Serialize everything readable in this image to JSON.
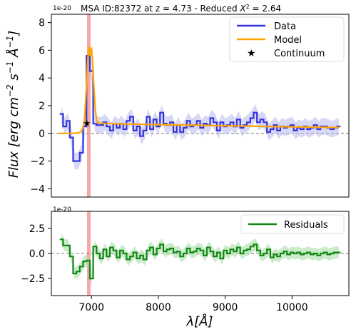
{
  "title": "MSA ID:82372 at z = 4.73 - Reduced",
  "title_chi": "X",
  "title_chi_exp": "2",
  "title_chi_value": " = 2.64",
  "colors": {
    "data": "#3333dd",
    "data_err": "#b8b8ee",
    "model": "#ffa500",
    "residuals": "#118811",
    "residuals_err": "#a8dda8",
    "line_marker": "#f4a0a0",
    "zero": "#777777"
  },
  "chart_data": [
    {
      "type": "line",
      "panel": "top",
      "offset_text": "1e-20",
      "ylabel": "Flux [erg cm",
      "ylabel_exp1": "−2",
      "ylabel_mid": " s",
      "ylabel_exp2": "−1",
      "ylabel_mid2": " Å",
      "ylabel_exp3": "−1",
      "ylabel_end": "]",
      "xlim": [
        6400,
        10850
      ],
      "ylim": [
        -4.6,
        8.6
      ],
      "yticks": [
        -4,
        -2,
        0,
        2,
        4,
        6,
        8
      ],
      "grid": false,
      "legend_position": "top-right",
      "legend": [
        "Data",
        "Model",
        "Continuum"
      ],
      "emission_line_x": 6960,
      "continuum_marker": {
        "x": 6930,
        "y": 0.75
      },
      "series": [
        {
          "name": "Data",
          "style": "step",
          "x": [
            6550,
            6600,
            6650,
            6700,
            6750,
            6800,
            6850,
            6900,
            6950,
            7000,
            7050,
            7100,
            7150,
            7200,
            7250,
            7300,
            7350,
            7400,
            7450,
            7500,
            7550,
            7600,
            7650,
            7700,
            7750,
            7800,
            7850,
            7900,
            7950,
            8000,
            8050,
            8100,
            8150,
            8200,
            8250,
            8300,
            8350,
            8400,
            8450,
            8500,
            8550,
            8600,
            8650,
            8700,
            8750,
            8800,
            8850,
            8900,
            8950,
            9000,
            9050,
            9100,
            9150,
            9200,
            9250,
            9300,
            9350,
            9400,
            9450,
            9500,
            9550,
            9600,
            9650,
            9700,
            9750,
            9800,
            9850,
            9900,
            9950,
            10000,
            10050,
            10100,
            10150,
            10200,
            10250,
            10300,
            10350,
            10400,
            10450,
            10500,
            10550,
            10600,
            10650,
            10700
          ],
          "y": [
            1.4,
            0.5,
            0.9,
            -0.3,
            -2.0,
            -2.0,
            -1.4,
            0.5,
            5.6,
            4.5,
            0.7,
            0.6,
            0.6,
            0.8,
            0.5,
            0.2,
            0.7,
            0.4,
            0.7,
            0.3,
            0.9,
            1.2,
            0.2,
            0.5,
            -0.2,
            0.2,
            1.2,
            0.3,
            1.0,
            0.5,
            1.5,
            0.7,
            0.6,
            0.8,
            0.1,
            0.6,
            0.1,
            0.4,
            0.9,
            0.5,
            0.6,
            0.9,
            0.4,
            0.7,
            0.6,
            1.1,
            0.8,
            0.2,
            0.8,
            0.5,
            0.6,
            0.8,
            0.5,
            1.0,
            0.4,
            0.6,
            0.8,
            1.1,
            1.5,
            0.8,
            1.0,
            0.8,
            0.1,
            0.3,
            0.6,
            0.2,
            0.5,
            0.4,
            0.5,
            0.6,
            0.2,
            0.4,
            0.3,
            0.5,
            0.3,
            0.4,
            0.6,
            0.3,
            0.5,
            0.5,
            0.4,
            0.3,
            0.4,
            0.5
          ]
        },
        {
          "name": "Model",
          "style": "line",
          "x": [
            6500,
            6700,
            6800,
            6850,
            6880,
            6900,
            6920,
            6940,
            6960,
            6980,
            7000,
            7020,
            7040,
            7060,
            7080,
            7100,
            7200,
            7500,
            8000,
            9000,
            10000,
            10700
          ],
          "y": [
            0.0,
            0.0,
            0.03,
            0.15,
            0.5,
            1.3,
            3.0,
            5.0,
            6.3,
            5.6,
            6.2,
            4.8,
            3.0,
            1.6,
            0.9,
            0.75,
            0.72,
            0.68,
            0.63,
            0.55,
            0.47,
            0.42
          ]
        }
      ]
    },
    {
      "type": "line",
      "panel": "bottom",
      "offset_text": "1e-20",
      "xlabel": "λ[Å]",
      "xlim": [
        6400,
        10850
      ],
      "ylim": [
        -4.2,
        4.2
      ],
      "xticks": [
        7000,
        8000,
        9000,
        10000
      ],
      "yticks": [
        -2.5,
        0.0,
        2.5
      ],
      "grid": false,
      "legend_position": "top-right",
      "legend": [
        "Residuals"
      ],
      "series": [
        {
          "name": "Residuals",
          "style": "step",
          "x": [
            6550,
            6600,
            6650,
            6700,
            6750,
            6800,
            6850,
            6900,
            6950,
            7000,
            7050,
            7100,
            7150,
            7200,
            7250,
            7300,
            7350,
            7400,
            7450,
            7500,
            7550,
            7600,
            7650,
            7700,
            7750,
            7800,
            7850,
            7900,
            7950,
            8000,
            8050,
            8100,
            8150,
            8200,
            8250,
            8300,
            8350,
            8400,
            8450,
            8500,
            8550,
            8600,
            8650,
            8700,
            8750,
            8800,
            8850,
            8900,
            8950,
            9000,
            9050,
            9100,
            9150,
            9200,
            9250,
            9300,
            9350,
            9400,
            9450,
            9500,
            9550,
            9600,
            9650,
            9700,
            9750,
            9800,
            9850,
            9900,
            9950,
            10000,
            10050,
            10100,
            10150,
            10200,
            10250,
            10300,
            10350,
            10400,
            10450,
            10500,
            10550,
            10600,
            10650,
            10700
          ],
          "y": [
            1.4,
            0.8,
            0.8,
            -0.3,
            -2.0,
            -1.8,
            -1.3,
            -0.8,
            -0.7,
            -2.5,
            0.7,
            0.0,
            -0.5,
            0.4,
            -0.3,
            0.6,
            0.3,
            -0.4,
            0.3,
            0.0,
            -0.6,
            -0.3,
            0.1,
            -0.5,
            -0.2,
            -0.6,
            0.3,
            0.6,
            -0.1,
            0.5,
            0.9,
            0.2,
            0.4,
            0.5,
            0.1,
            0.2,
            -0.3,
            0.0,
            0.5,
            0.1,
            0.2,
            0.5,
            0.3,
            -0.2,
            0.6,
            0.2,
            -0.3,
            0.1,
            -0.5,
            0.3,
            0.0,
            0.4,
            0.2,
            0.6,
            0.0,
            0.3,
            0.4,
            0.7,
            0.9,
            0.3,
            -0.2,
            0.0,
            0.4,
            -0.4,
            -0.1,
            -0.3,
            0.0,
            0.2,
            -0.1,
            0.1,
            0.0,
            0.1,
            -0.1,
            0.0,
            0.1,
            -0.1,
            0.0,
            -0.2,
            0.0,
            0.1,
            -0.1,
            0.0,
            0.1,
            0.1
          ]
        }
      ]
    }
  ]
}
